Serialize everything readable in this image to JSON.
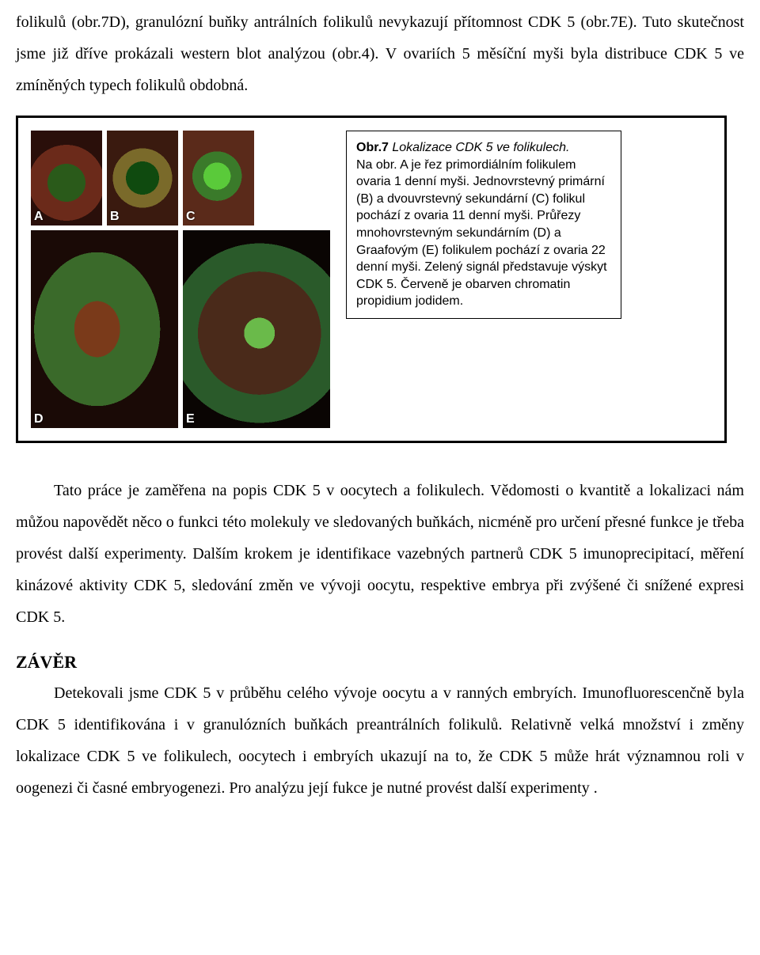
{
  "para1": "folikulů (obr.7D), granulózní buňky antrálních folikulů nevykazují přítomnost CDK 5 (obr.7E). Tuto skutečnost jsme již dříve prokázali western blot analýzou (obr.4). V ovariích 5 měsíční myši byla distribuce CDK 5 ve zmíněných typech folikulů obdobná.",
  "figure": {
    "labels": {
      "A": "A",
      "B": "B",
      "C": "C",
      "D": "D",
      "E": "E"
    },
    "caption_title_bold": "Obr.7",
    "caption_title_rest_italic": " Lokalizace CDK 5 ve folikulech.",
    "caption_body": "Na obr. A je řez primordiálním folikulem ovaria 1 denní myši. Jednovrstevný primární (B) a dvouvrstevný sekundární (C) folikul pochází z ovaria 11 denní myši. Průřezy mnohovrstevným sekundárním (D) a Graafovým (E) folikulem pochází z ovaria 22 denní myši. Zelený signál představuje výskyt CDK 5. Červeně je obarven chromatin propidium jodidem."
  },
  "para2": "Tato práce je zaměřena na popis CDK 5 v oocytech a folikulech. Vědomosti o kvantitě a lokalizaci  nám můžou napovědět něco o funkci této molekuly ve sledovaných buňkách, nicméně pro určení přesné funkce je třeba provést další experimenty. Dalším krokem je identifikace vazebných partnerů CDK 5 imunoprecipitací, měření kinázové aktivity CDK 5, sledování změn ve vývoji oocytu, respektive embrya při zvýšené či snížené expresi CDK 5.",
  "heading": "ZÁVĚR",
  "para3": "Detekovali jsme CDK 5 v průběhu celého vývoje oocytu a v ranných embryích. Imunofluorescenčně byla CDK 5 identifikována i v granulózních buňkách preantrálních folikulů. Relativně velká množství i změny lokalizace CDK 5 ve folikulech, oocytech i embryích ukazují na to, že CDK 5 může hrát významnou roli v oogenezi či časné embryogenezi. Pro analýzu její fukce je nutné provést další experimenty ."
}
